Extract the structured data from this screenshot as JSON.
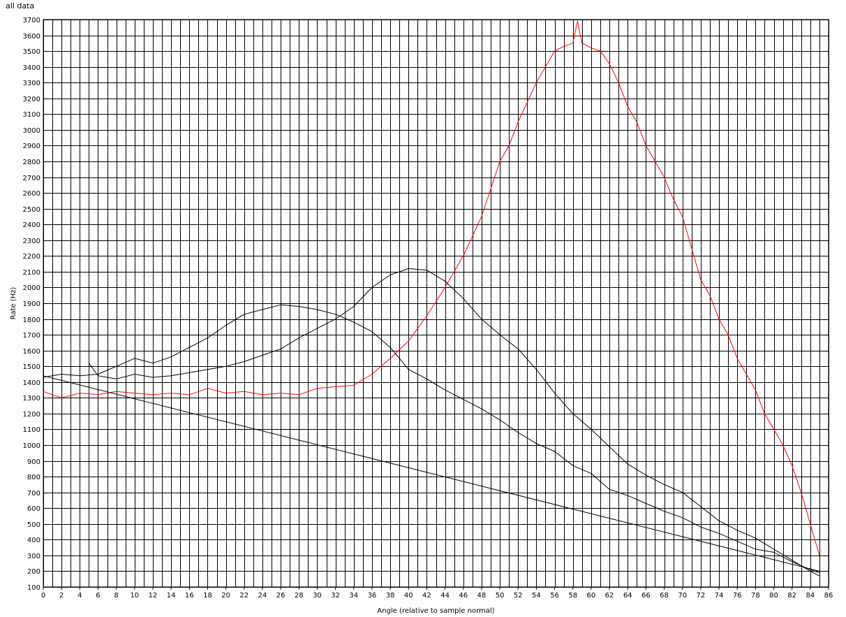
{
  "chart_data": {
    "type": "line",
    "title": "all data",
    "xlabel": "Angle (relative to sample normal)",
    "ylabel": "Rate (Hz)",
    "xlim": [
      0,
      86
    ],
    "ylim": [
      100,
      3700
    ],
    "x_ticks": [
      "0",
      "2",
      "4",
      "6",
      "8",
      "10",
      "12",
      "14",
      "16",
      "18",
      "20",
      "22",
      "24",
      "26",
      "28",
      "30",
      "32",
      "34",
      "36",
      "38",
      "40",
      "42",
      "44",
      "46",
      "48",
      "50",
      "52",
      "54",
      "56",
      "58",
      "60",
      "62",
      "64",
      "66",
      "68",
      "70",
      "72",
      "74",
      "76",
      "78",
      "80",
      "82",
      "84",
      "86"
    ],
    "y_ticks": [
      "100",
      "200",
      "300",
      "400",
      "500",
      "600",
      "700",
      "800",
      "900",
      "1000",
      "1100",
      "1200",
      "1300",
      "1400",
      "1500",
      "1600",
      "1700",
      "1800",
      "1900",
      "2000",
      "2100",
      "2200",
      "2300",
      "2400",
      "2500",
      "2600",
      "2700",
      "2800",
      "2900",
      "3000",
      "3100",
      "3200",
      "3300",
      "3400",
      "3500",
      "3600",
      "3700"
    ],
    "grid": true,
    "series": [
      {
        "color": "#ff0000",
        "x": [
          0,
          2,
          4,
          6,
          8,
          10,
          12,
          14,
          16,
          18,
          20,
          22,
          24,
          26,
          28,
          30,
          32,
          34,
          36,
          38,
          40,
          42,
          44,
          46,
          48,
          50,
          51,
          52,
          54,
          56,
          57,
          58,
          58.5,
          59,
          60,
          61,
          62,
          63,
          64,
          65,
          66,
          67,
          68,
          69,
          70,
          71,
          72,
          73,
          74,
          75,
          76,
          77,
          78,
          79,
          80,
          81,
          82,
          83,
          84,
          85
        ],
        "y": [
          1340,
          1300,
          1330,
          1320,
          1340,
          1330,
          1320,
          1330,
          1320,
          1360,
          1330,
          1340,
          1320,
          1330,
          1320,
          1360,
          1370,
          1380,
          1450,
          1550,
          1660,
          1820,
          2000,
          2200,
          2450,
          2800,
          2900,
          3050,
          3300,
          3500,
          3530,
          3550,
          3690,
          3550,
          3520,
          3500,
          3420,
          3300,
          3150,
          3050,
          2900,
          2800,
          2700,
          2560,
          2450,
          2250,
          2050,
          1950,
          1800,
          1700,
          1550,
          1450,
          1350,
          1200,
          1100,
          1000,
          870,
          700,
          500,
          300
        ]
      },
      {
        "color": "#000000",
        "x": [
          0,
          2,
          4,
          6,
          8,
          10,
          12,
          14,
          16,
          18,
          20,
          22,
          24,
          26,
          28,
          30,
          32,
          34,
          36,
          38,
          40,
          42,
          44,
          46,
          48,
          50,
          52,
          54,
          56,
          58,
          60,
          62,
          64,
          66,
          68,
          70,
          72,
          74,
          76,
          78,
          80,
          82,
          84,
          85
        ],
        "y": [
          1430,
          1450,
          1440,
          1450,
          1500,
          1550,
          1520,
          1560,
          1620,
          1680,
          1760,
          1830,
          1860,
          1890,
          1880,
          1860,
          1830,
          1780,
          1720,
          1620,
          1480,
          1420,
          1350,
          1290,
          1230,
          1160,
          1080,
          1010,
          960,
          870,
          820,
          720,
          680,
          630,
          580,
          540,
          480,
          440,
          390,
          340,
          320,
          260,
          210,
          190
        ]
      },
      {
        "color": "#000000",
        "x": [
          5,
          6,
          8,
          10,
          12,
          14,
          16,
          18,
          20,
          22,
          24,
          26,
          28,
          30,
          32,
          34,
          36,
          38,
          40,
          42,
          44,
          46,
          48,
          50,
          52,
          54,
          56,
          58,
          60,
          62,
          64,
          66,
          68,
          70,
          72,
          74,
          76,
          78,
          80,
          82,
          84,
          85
        ],
        "y": [
          1520,
          1440,
          1420,
          1450,
          1430,
          1440,
          1460,
          1480,
          1500,
          1530,
          1570,
          1610,
          1680,
          1740,
          1800,
          1880,
          2000,
          2080,
          2120,
          2110,
          2040,
          1930,
          1800,
          1700,
          1610,
          1480,
          1330,
          1200,
          1100,
          990,
          880,
          810,
          750,
          700,
          610,
          520,
          460,
          410,
          340,
          270,
          200,
          170
        ]
      },
      {
        "color": "#000000",
        "x": [
          0,
          85
        ],
        "y": [
          1440,
          200
        ]
      }
    ]
  }
}
